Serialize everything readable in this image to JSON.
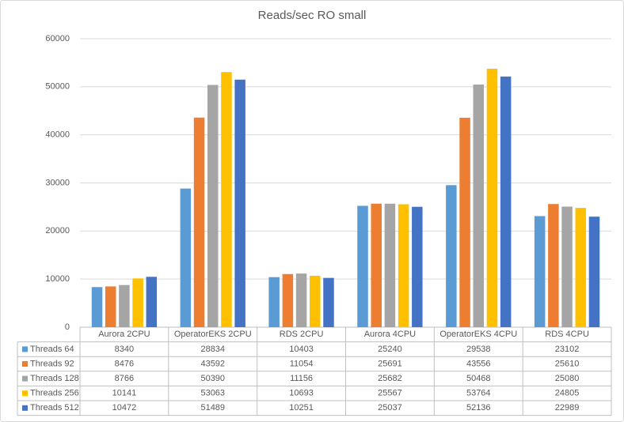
{
  "chart_data": {
    "type": "bar",
    "title": "Reads/sec RO small",
    "categories": [
      "Aurora 2CPU",
      "OperatorEKS 2CPU",
      "RDS 2CPU",
      "Aurora 4CPU",
      "OperatorEKS 4CPU",
      "RDS 4CPU"
    ],
    "series": [
      {
        "name": "Threads 64",
        "color": "#5b9bd5",
        "values": [
          8340,
          28834,
          10403,
          25240,
          29538,
          23102
        ]
      },
      {
        "name": "Threads 92",
        "color": "#ed7d31",
        "values": [
          8476,
          43592,
          11054,
          25691,
          43556,
          25610
        ]
      },
      {
        "name": "Threads 128",
        "color": "#a5a5a5",
        "values": [
          8766,
          50390,
          11156,
          25682,
          50468,
          25080
        ]
      },
      {
        "name": "Threads 256",
        "color": "#ffc000",
        "values": [
          10141,
          53063,
          10693,
          25567,
          53764,
          24805
        ]
      },
      {
        "name": "Threads 512",
        "color": "#4472c4",
        "values": [
          10472,
          51489,
          10251,
          25037,
          52136,
          22989
        ]
      }
    ],
    "ylim": [
      0,
      60000
    ],
    "yticks": [
      0,
      10000,
      20000,
      30000,
      40000,
      50000,
      60000
    ],
    "grid": true
  }
}
